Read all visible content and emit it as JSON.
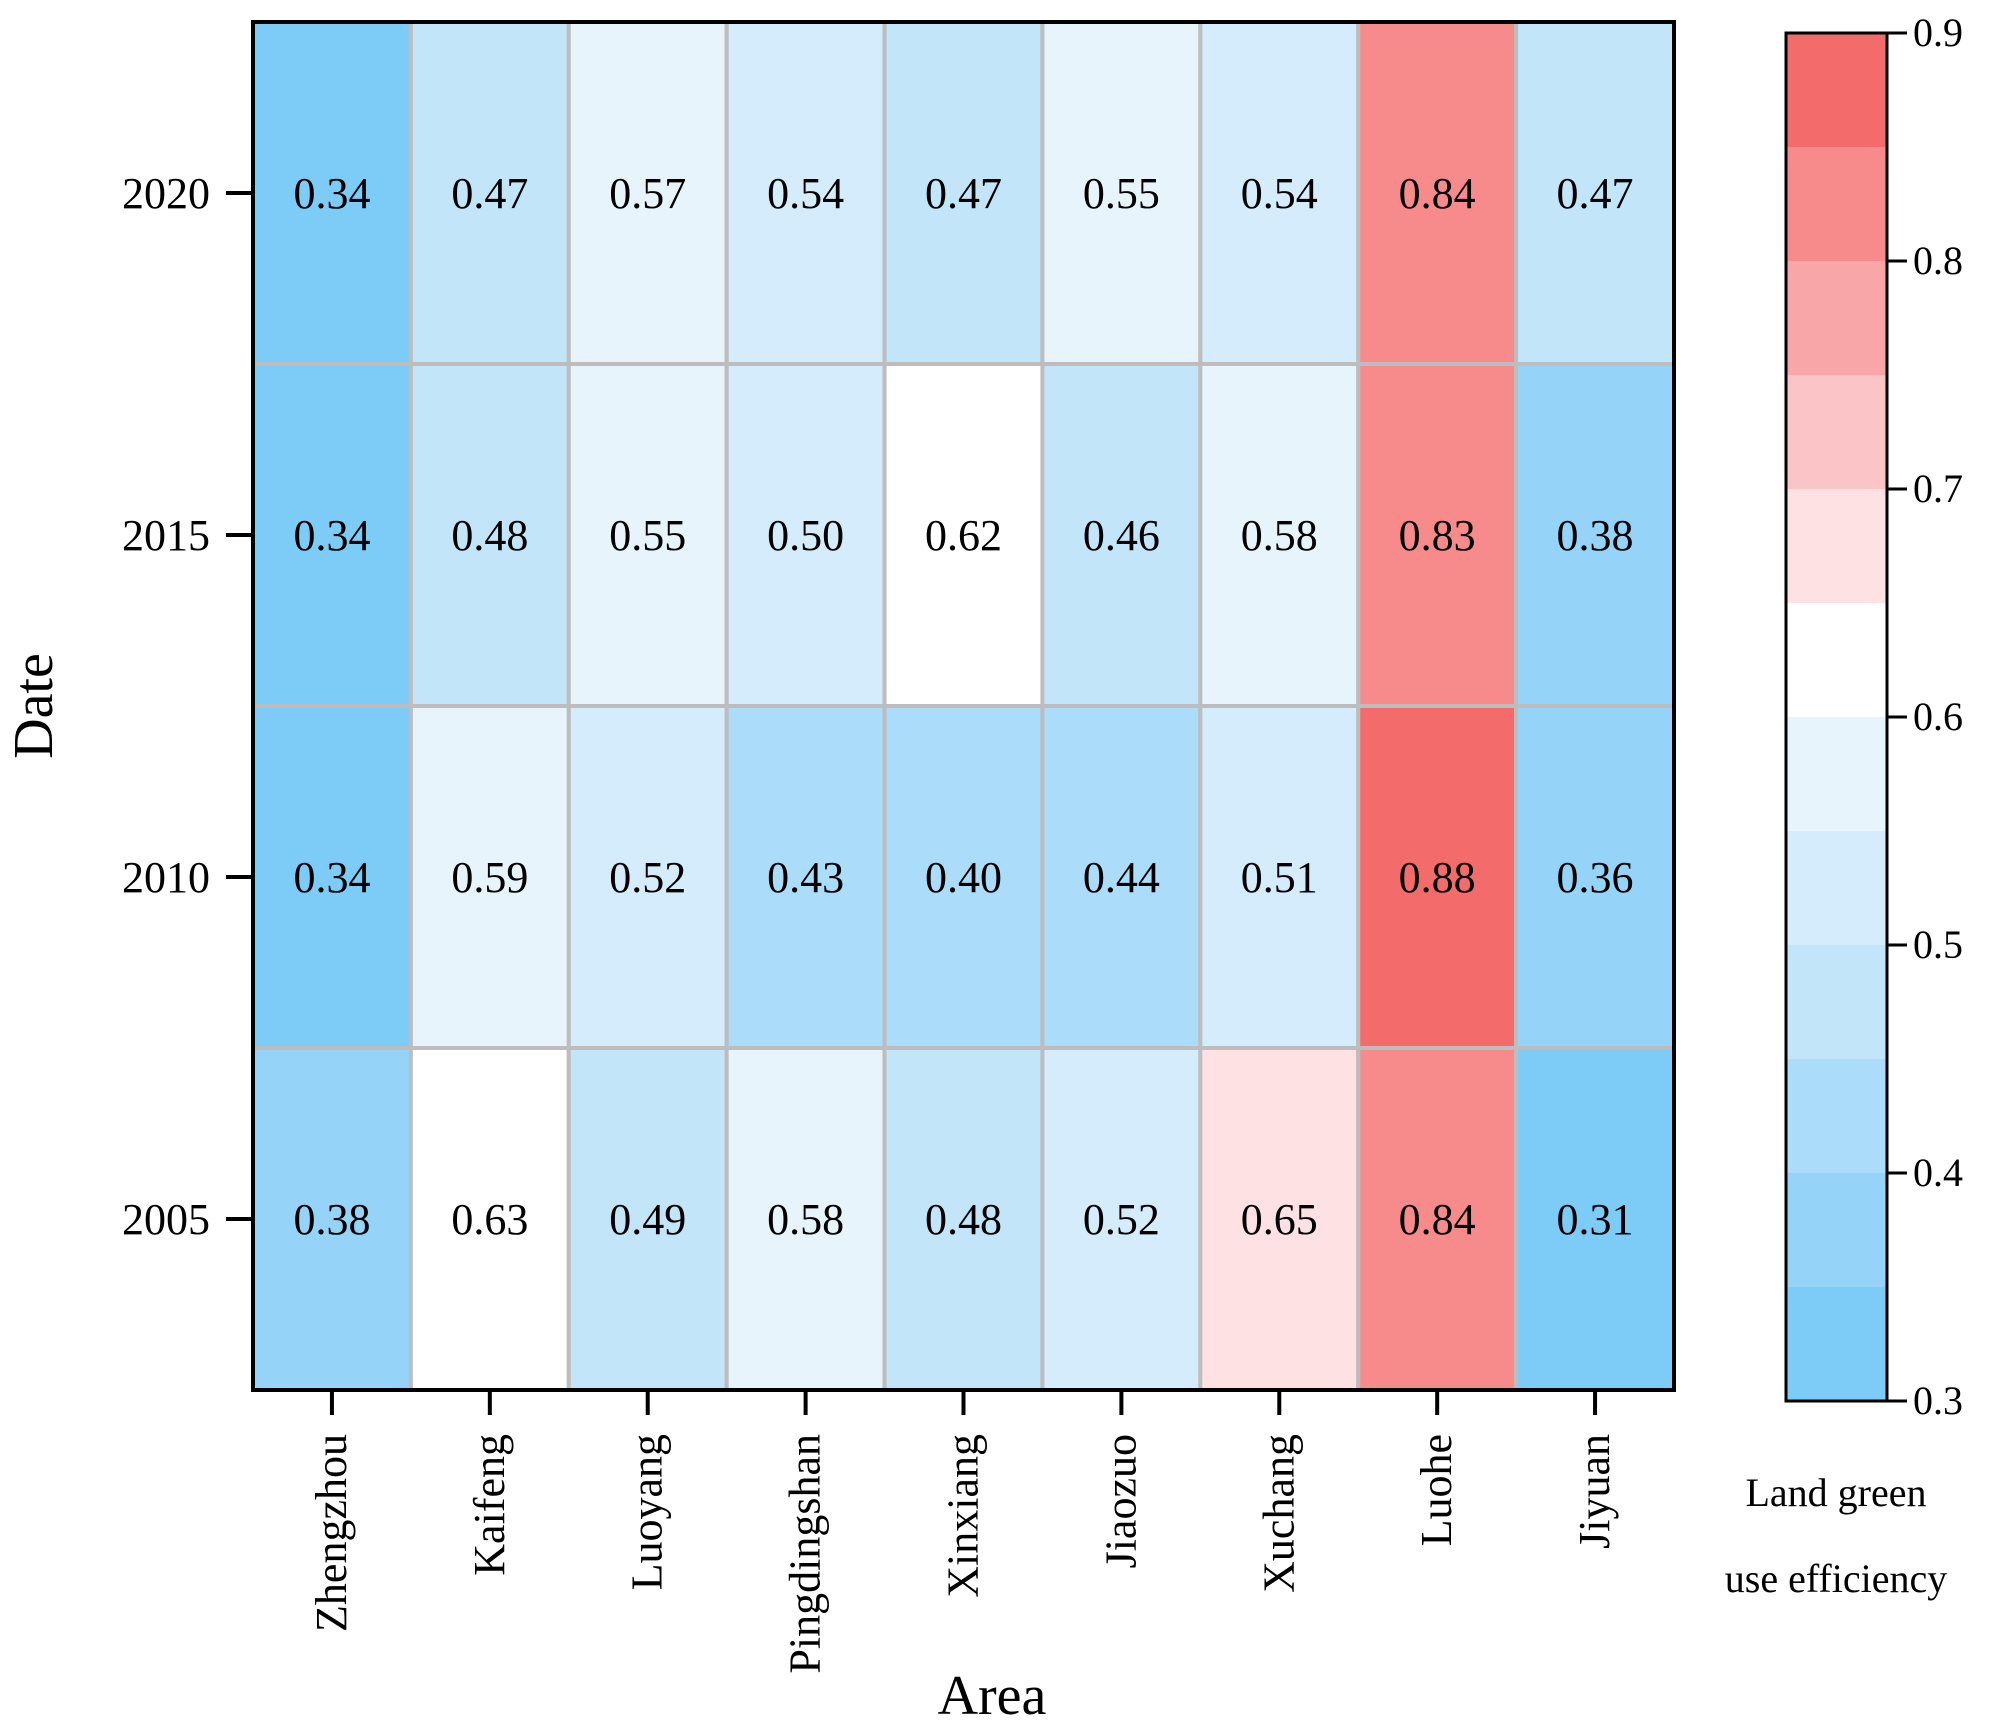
{
  "chart_data": {
    "type": "heatmap",
    "title": "",
    "xlabel": "Area",
    "ylabel": "Date",
    "areas": [
      "Zhengzhou",
      "Kaifeng",
      "Luoyang",
      "Pingdingshan",
      "Xinxiang",
      "Jiaozuo",
      "Xuchang",
      "Luohe",
      "Jiyuan"
    ],
    "dates": [
      "2020",
      "2015",
      "2010",
      "2005"
    ],
    "values": [
      [
        0.34,
        0.47,
        0.57,
        0.54,
        0.47,
        0.55,
        0.54,
        0.84,
        0.47
      ],
      [
        0.34,
        0.48,
        0.55,
        0.5,
        0.62,
        0.46,
        0.58,
        0.83,
        0.38
      ],
      [
        0.34,
        0.59,
        0.52,
        0.43,
        0.4,
        0.44,
        0.51,
        0.88,
        0.36
      ],
      [
        0.38,
        0.63,
        0.49,
        0.58,
        0.48,
        0.52,
        0.65,
        0.84,
        0.31
      ]
    ],
    "value_labels": [
      [
        "0.34",
        "0.47",
        "0.57",
        "0.54",
        "0.47",
        "0.55",
        "0.54",
        "0.84",
        "0.47"
      ],
      [
        "0.34",
        "0.48",
        "0.55",
        "0.50",
        "0.62",
        "0.46",
        "0.58",
        "0.83",
        "0.38"
      ],
      [
        "0.34",
        "0.59",
        "0.52",
        "0.43",
        "0.40",
        "0.44",
        "0.51",
        "0.88",
        "0.36"
      ],
      [
        "0.38",
        "0.63",
        "0.49",
        "0.58",
        "0.48",
        "0.52",
        "0.65",
        "0.84",
        "0.31"
      ]
    ],
    "colorbar": {
      "label_line1": "Land green",
      "label_line2": "use efficiency",
      "range": [
        0.3,
        0.9
      ],
      "ticks": [
        "0.3",
        "0.4",
        "0.5",
        "0.6",
        "0.7",
        "0.8",
        "0.9"
      ],
      "bins": [
        {
          "lo": 0.3,
          "hi": 0.35,
          "color": "#7dcbf7"
        },
        {
          "lo": 0.35,
          "hi": 0.4,
          "color": "#95d4f8"
        },
        {
          "lo": 0.4,
          "hi": 0.45,
          "color": "#abdcf9"
        },
        {
          "lo": 0.45,
          "hi": 0.5,
          "color": "#c2e5fa"
        },
        {
          "lo": 0.5,
          "hi": 0.55,
          "color": "#d4ecfb"
        },
        {
          "lo": 0.55,
          "hi": 0.6,
          "color": "#e7f4fc"
        },
        {
          "lo": 0.6,
          "hi": 0.65,
          "color": "#ffffff"
        },
        {
          "lo": 0.65,
          "hi": 0.7,
          "color": "#fde1e3"
        },
        {
          "lo": 0.7,
          "hi": 0.75,
          "color": "#fbc4c6"
        },
        {
          "lo": 0.75,
          "hi": 0.8,
          "color": "#f9a6a8"
        },
        {
          "lo": 0.8,
          "hi": 0.85,
          "color": "#f78a8b"
        },
        {
          "lo": 0.85,
          "hi": 0.9,
          "color": "#f46b6c"
        }
      ]
    }
  }
}
